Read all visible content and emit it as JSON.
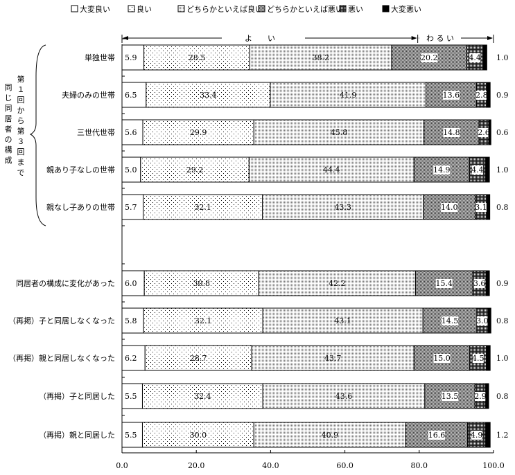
{
  "chart_data": {
    "type": "bar",
    "orientation": "horizontal",
    "stacked": true,
    "legend_position": "top",
    "legend": [
      "大変良い",
      "良い",
      "どちらかといえば良い",
      "どちらかといえば悪い",
      "悪い",
      "大変悪い"
    ],
    "annotations": {
      "good": "よ　　い",
      "bad": "わ る い"
    },
    "group_label": {
      "col1": "第１回から第３回まで",
      "col2": "同じ同居者の構成"
    },
    "categories": [
      "単独世帯",
      "夫婦のみの世帯",
      "三世代世帯",
      "親あり子なしの世帯",
      "親なし子ありの世帯",
      "同居者の構成に変化があった",
      "（再掲）子と同居しなくなった",
      "（再掲）親と同居しなくなった",
      "（再掲）子と同居した",
      "（再掲）親と同居した"
    ],
    "series": [
      {
        "name": "大変良い",
        "values": [
          5.9,
          6.5,
          5.6,
          5.0,
          5.7,
          6.0,
          5.8,
          6.2,
          5.5,
          5.5
        ]
      },
      {
        "name": "良い",
        "values": [
          28.5,
          33.4,
          29.9,
          29.2,
          32.1,
          30.8,
          32.1,
          28.7,
          32.4,
          30.0
        ]
      },
      {
        "name": "どちらかといえば良い",
        "values": [
          38.2,
          41.9,
          45.8,
          44.4,
          43.3,
          42.2,
          43.1,
          43.7,
          43.6,
          40.9
        ]
      },
      {
        "name": "どちらかといえば悪い",
        "values": [
          20.2,
          13.6,
          14.8,
          14.9,
          14.0,
          15.4,
          14.5,
          15.0,
          13.5,
          16.6
        ]
      },
      {
        "name": "悪い",
        "values": [
          4.4,
          2.8,
          2.6,
          4.4,
          3.1,
          3.6,
          3.0,
          4.5,
          2.9,
          4.9
        ]
      },
      {
        "name": "大変悪い",
        "values": [
          1.0,
          0.9,
          0.6,
          1.0,
          0.8,
          0.9,
          0.8,
          1.0,
          0.8,
          1.2
        ]
      }
    ],
    "xlim": [
      0,
      100
    ],
    "xticks": [
      "0.0",
      "20.0",
      "40.0",
      "60.0",
      "80.0",
      "100.0"
    ],
    "grid": false
  }
}
